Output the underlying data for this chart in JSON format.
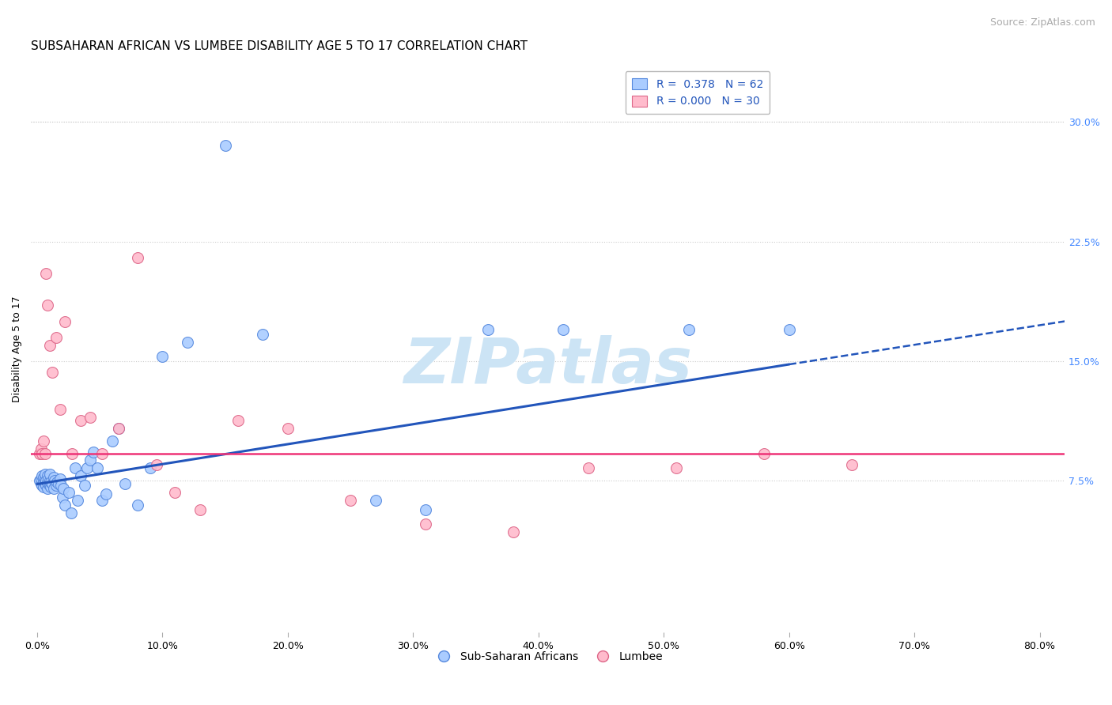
{
  "title": "SUBSAHARAN AFRICAN VS LUMBEE DISABILITY AGE 5 TO 17 CORRELATION CHART",
  "source": "Source: ZipAtlas.com",
  "xlabel_ticks": [
    "0.0%",
    "10.0%",
    "20.0%",
    "30.0%",
    "40.0%",
    "50.0%",
    "60.0%",
    "70.0%",
    "80.0%"
  ],
  "xlabel_vals": [
    0.0,
    0.1,
    0.2,
    0.3,
    0.4,
    0.5,
    0.6,
    0.7,
    0.8
  ],
  "ylabel": "Disability Age 5 to 17",
  "ylabel_ticks_right": [
    "7.5%",
    "15.0%",
    "22.5%",
    "30.0%"
  ],
  "ylabel_vals": [
    0.075,
    0.15,
    0.225,
    0.3
  ],
  "xlim": [
    -0.005,
    0.82
  ],
  "ylim": [
    -0.02,
    0.335
  ],
  "legend_blue_R": "0.378",
  "legend_blue_N": "62",
  "legend_pink_R": "0.000",
  "legend_pink_N": "30",
  "blue_scatter_x": [
    0.002,
    0.003,
    0.003,
    0.004,
    0.004,
    0.005,
    0.005,
    0.005,
    0.006,
    0.006,
    0.006,
    0.007,
    0.007,
    0.008,
    0.008,
    0.008,
    0.009,
    0.009,
    0.01,
    0.01,
    0.01,
    0.011,
    0.011,
    0.012,
    0.013,
    0.013,
    0.014,
    0.015,
    0.016,
    0.017,
    0.018,
    0.019,
    0.02,
    0.021,
    0.022,
    0.025,
    0.027,
    0.03,
    0.032,
    0.035,
    0.038,
    0.04,
    0.042,
    0.045,
    0.048,
    0.052,
    0.055,
    0.06,
    0.065,
    0.07,
    0.08,
    0.09,
    0.1,
    0.12,
    0.15,
    0.18,
    0.27,
    0.31,
    0.36,
    0.42,
    0.52,
    0.6
  ],
  "blue_scatter_y": [
    0.075,
    0.073,
    0.076,
    0.072,
    0.078,
    0.074,
    0.077,
    0.071,
    0.076,
    0.073,
    0.079,
    0.072,
    0.075,
    0.07,
    0.074,
    0.078,
    0.073,
    0.076,
    0.072,
    0.075,
    0.079,
    0.071,
    0.074,
    0.073,
    0.077,
    0.07,
    0.075,
    0.072,
    0.074,
    0.073,
    0.076,
    0.072,
    0.065,
    0.07,
    0.06,
    0.068,
    0.055,
    0.083,
    0.063,
    0.078,
    0.072,
    0.083,
    0.088,
    0.093,
    0.083,
    0.063,
    0.067,
    0.1,
    0.108,
    0.073,
    0.06,
    0.083,
    0.153,
    0.162,
    0.285,
    0.167,
    0.063,
    0.057,
    0.17,
    0.17,
    0.17,
    0.17
  ],
  "pink_scatter_x": [
    0.002,
    0.003,
    0.004,
    0.005,
    0.006,
    0.007,
    0.008,
    0.01,
    0.012,
    0.015,
    0.018,
    0.022,
    0.028,
    0.035,
    0.042,
    0.052,
    0.065,
    0.08,
    0.095,
    0.11,
    0.13,
    0.16,
    0.2,
    0.25,
    0.31,
    0.38,
    0.44,
    0.51,
    0.58,
    0.65
  ],
  "pink_scatter_y": [
    0.092,
    0.095,
    0.092,
    0.1,
    0.092,
    0.205,
    0.185,
    0.16,
    0.143,
    0.165,
    0.12,
    0.175,
    0.092,
    0.113,
    0.115,
    0.092,
    0.108,
    0.215,
    0.085,
    0.068,
    0.057,
    0.113,
    0.108,
    0.063,
    0.048,
    0.043,
    0.083,
    0.083,
    0.092,
    0.085
  ],
  "blue_line_x_start": 0.0,
  "blue_line_x_solid_end": 0.6,
  "blue_line_x_end": 0.82,
  "blue_line_y_start": 0.073,
  "blue_line_y_solid_end": 0.148,
  "blue_line_y_end": 0.175,
  "pink_line_y": 0.092,
  "title_fontsize": 11,
  "source_fontsize": 9,
  "axis_label_fontsize": 9,
  "tick_fontsize": 9,
  "legend_fontsize": 10,
  "background_color": "#ffffff",
  "plot_bg_color": "#ffffff",
  "grid_color": "#cccccc",
  "blue_color": "#aaccff",
  "blue_edge_color": "#5588dd",
  "blue_line_color": "#2255bb",
  "pink_color": "#ffbbcc",
  "pink_edge_color": "#dd6688",
  "pink_line_color": "#ee3377",
  "watermark_color": "#cce4f5",
  "right_axis_color": "#4488ff"
}
